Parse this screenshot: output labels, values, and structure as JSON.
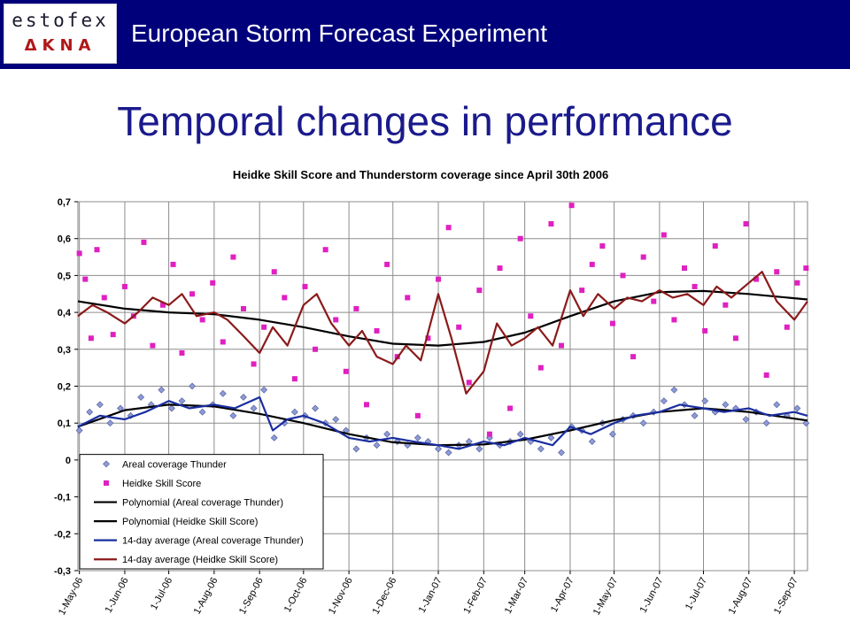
{
  "header": {
    "logo_text": "estofex",
    "logo_glyphs": "ΔΚΝΑ",
    "org_name": "European Storm Forecast Experiment"
  },
  "slide": {
    "title": "Temporal changes in performance"
  },
  "chart_data": {
    "type": "line",
    "title": "Heidke Skill Score and Thunderstorm coverage since April 30th 2006",
    "xlabel": "",
    "ylabel": "",
    "ylim": [
      -0.3,
      0.7
    ],
    "y_ticks": [
      "0,7",
      "0,6",
      "0,5",
      "0,4",
      "0,3",
      "0,2",
      "0,1",
      "0",
      "-0,1",
      "-0,2",
      "-0,3"
    ],
    "y_tick_values": [
      0.7,
      0.6,
      0.5,
      0.4,
      0.3,
      0.2,
      0.1,
      0,
      -0.1,
      -0.2,
      -0.3
    ],
    "x_start": "2006-04-30",
    "x_end": "2007-09-10",
    "x_ticks": [
      {
        "label": "1-May-06",
        "date": "2006-05-01"
      },
      {
        "label": "1-Jun-06",
        "date": "2006-06-01"
      },
      {
        "label": "1-Jul-06",
        "date": "2006-07-01"
      },
      {
        "label": "1-Aug-06",
        "date": "2006-08-01"
      },
      {
        "label": "1-Sep-06",
        "date": "2006-09-01"
      },
      {
        "label": "1-Oct-06",
        "date": "2006-10-01"
      },
      {
        "label": "1-Nov-06",
        "date": "2006-11-01"
      },
      {
        "label": "1-Dec-06",
        "date": "2006-12-01"
      },
      {
        "label": "1-Jan-07",
        "date": "2007-01-01"
      },
      {
        "label": "1-Feb-07",
        "date": "2007-02-01"
      },
      {
        "label": "1-Mar-07",
        "date": "2007-03-01"
      },
      {
        "label": "1-Apr-07",
        "date": "2007-04-01"
      },
      {
        "label": "1-May-07",
        "date": "2007-05-01"
      },
      {
        "label": "1-Jun-07",
        "date": "2007-06-01"
      },
      {
        "label": "1-Jul-07",
        "date": "2007-07-01"
      },
      {
        "label": "1-Aug-07",
        "date": "2007-08-01"
      },
      {
        "label": "1-Sep-07",
        "date": "2007-09-01"
      }
    ],
    "grid": true,
    "legend_position": "bottom-left",
    "series": [
      {
        "name": "Areal coverage Thunder",
        "kind": "scatter",
        "marker": "diamond",
        "color": "#8e9ad8",
        "x": [
          "2006-05-01",
          "2006-05-08",
          "2006-05-15",
          "2006-05-22",
          "2006-05-29",
          "2006-06-05",
          "2006-06-12",
          "2006-06-19",
          "2006-06-26",
          "2006-07-03",
          "2006-07-10",
          "2006-07-17",
          "2006-07-24",
          "2006-07-31",
          "2006-08-07",
          "2006-08-14",
          "2006-08-21",
          "2006-08-28",
          "2006-09-04",
          "2006-09-11",
          "2006-09-18",
          "2006-09-25",
          "2006-10-02",
          "2006-10-09",
          "2006-10-16",
          "2006-10-23",
          "2006-10-30",
          "2006-11-06",
          "2006-11-13",
          "2006-11-20",
          "2006-11-27",
          "2006-12-04",
          "2006-12-11",
          "2006-12-18",
          "2006-12-25",
          "2007-01-01",
          "2007-01-08",
          "2007-01-15",
          "2007-01-22",
          "2007-01-29",
          "2007-02-05",
          "2007-02-12",
          "2007-02-19",
          "2007-02-26",
          "2007-03-05",
          "2007-03-12",
          "2007-03-19",
          "2007-03-26",
          "2007-04-02",
          "2007-04-09",
          "2007-04-16",
          "2007-04-23",
          "2007-04-30",
          "2007-05-07",
          "2007-05-14",
          "2007-05-21",
          "2007-05-28",
          "2007-06-04",
          "2007-06-11",
          "2007-06-18",
          "2007-06-25",
          "2007-07-02",
          "2007-07-09",
          "2007-07-16",
          "2007-07-23",
          "2007-07-30",
          "2007-08-06",
          "2007-08-13",
          "2007-08-20",
          "2007-08-27",
          "2007-09-03",
          "2007-09-09"
        ],
        "y": [
          0.08,
          0.13,
          0.15,
          0.1,
          0.14,
          0.12,
          0.17,
          0.15,
          0.19,
          0.14,
          0.16,
          0.2,
          0.13,
          0.15,
          0.18,
          0.12,
          0.17,
          0.14,
          0.19,
          0.06,
          0.1,
          0.13,
          0.12,
          0.14,
          0.1,
          0.11,
          0.08,
          0.03,
          0.06,
          0.04,
          0.07,
          0.05,
          0.04,
          0.06,
          0.05,
          0.03,
          0.02,
          0.04,
          0.05,
          0.03,
          0.06,
          0.04,
          0.05,
          0.07,
          0.05,
          0.03,
          0.06,
          0.02,
          0.09,
          0.08,
          0.05,
          0.1,
          0.07,
          0.11,
          0.12,
          0.1,
          0.13,
          0.16,
          0.19,
          0.15,
          0.12,
          0.16,
          0.13,
          0.15,
          0.14,
          0.11,
          0.13,
          0.1,
          0.15,
          0.12,
          0.14,
          0.1
        ]
      },
      {
        "name": "Heidke Skill Score",
        "kind": "scatter",
        "marker": "square",
        "color": "#e020c0",
        "x": [
          "2006-05-01",
          "2006-05-05",
          "2006-05-09",
          "2006-05-13",
          "2006-05-18",
          "2006-05-24",
          "2006-06-01",
          "2006-06-07",
          "2006-06-14",
          "2006-06-20",
          "2006-06-27",
          "2006-07-04",
          "2006-07-10",
          "2006-07-17",
          "2006-07-24",
          "2006-07-31",
          "2006-08-07",
          "2006-08-14",
          "2006-08-21",
          "2006-08-28",
          "2006-09-04",
          "2006-09-11",
          "2006-09-18",
          "2006-09-25",
          "2006-10-02",
          "2006-10-09",
          "2006-10-16",
          "2006-10-23",
          "2006-10-30",
          "2006-11-06",
          "2006-11-13",
          "2006-11-20",
          "2006-11-27",
          "2006-12-04",
          "2006-12-11",
          "2006-12-18",
          "2006-12-25",
          "2007-01-01",
          "2007-01-08",
          "2007-01-15",
          "2007-01-22",
          "2007-01-29",
          "2007-02-05",
          "2007-02-12",
          "2007-02-19",
          "2007-02-26",
          "2007-03-05",
          "2007-03-12",
          "2007-03-19",
          "2007-03-26",
          "2007-04-02",
          "2007-04-09",
          "2007-04-16",
          "2007-04-23",
          "2007-04-30",
          "2007-05-07",
          "2007-05-14",
          "2007-05-21",
          "2007-05-28",
          "2007-06-04",
          "2007-06-11",
          "2007-06-18",
          "2007-06-25",
          "2007-07-02",
          "2007-07-09",
          "2007-07-16",
          "2007-07-23",
          "2007-07-30",
          "2007-08-06",
          "2007-08-13",
          "2007-08-20",
          "2007-08-27",
          "2007-09-03",
          "2007-09-09"
        ],
        "y": [
          0.56,
          0.49,
          0.33,
          0.57,
          0.44,
          0.34,
          0.47,
          0.39,
          0.59,
          0.31,
          0.42,
          0.53,
          0.29,
          0.45,
          0.38,
          0.48,
          0.32,
          0.55,
          0.41,
          0.26,
          0.36,
          0.51,
          0.44,
          0.22,
          0.47,
          0.3,
          0.57,
          0.38,
          0.24,
          0.41,
          0.15,
          0.35,
          0.53,
          0.28,
          0.44,
          0.12,
          0.33,
          0.49,
          0.63,
          0.36,
          0.21,
          0.46,
          0.07,
          0.52,
          0.14,
          0.6,
          0.39,
          0.25,
          0.64,
          0.31,
          0.69,
          0.46,
          0.53,
          0.58,
          0.37,
          0.5,
          0.28,
          0.55,
          0.43,
          0.61,
          0.38,
          0.52,
          0.47,
          0.35,
          0.58,
          0.42,
          0.33,
          0.64,
          0.49,
          0.23,
          0.51,
          0.36,
          0.48,
          0.52
        ]
      },
      {
        "name": "Polynomial (Areal coverage Thunder)",
        "kind": "line",
        "color": "#000000",
        "x": [
          "2006-04-30",
          "2006-06-01",
          "2006-07-01",
          "2006-08-01",
          "2006-09-01",
          "2006-10-01",
          "2006-11-01",
          "2006-12-01",
          "2007-01-01",
          "2007-02-01",
          "2007-03-01",
          "2007-04-01",
          "2007-05-01",
          "2007-06-01",
          "2007-07-01",
          "2007-08-01",
          "2007-09-10"
        ],
        "y": [
          0.09,
          0.135,
          0.15,
          0.145,
          0.125,
          0.1,
          0.07,
          0.048,
          0.04,
          0.042,
          0.055,
          0.08,
          0.108,
          0.13,
          0.14,
          0.13,
          0.107
        ]
      },
      {
        "name": "Polynomial (Heidke Skill Score)",
        "kind": "line",
        "color": "#000000",
        "x": [
          "2006-04-30",
          "2006-06-01",
          "2006-07-01",
          "2006-08-01",
          "2006-09-01",
          "2006-10-01",
          "2006-11-01",
          "2006-12-01",
          "2007-01-01",
          "2007-02-01",
          "2007-03-01",
          "2007-04-01",
          "2007-05-01",
          "2007-06-01",
          "2007-07-01",
          "2007-08-01",
          "2007-09-10"
        ],
        "y": [
          0.43,
          0.41,
          0.4,
          0.395,
          0.38,
          0.36,
          0.335,
          0.315,
          0.31,
          0.32,
          0.345,
          0.39,
          0.43,
          0.455,
          0.458,
          0.45,
          0.435
        ]
      },
      {
        "name": "14-day average (Areal coverage Thunder)",
        "kind": "line",
        "color": "#1a2ea0",
        "x": [
          "2006-04-30",
          "2006-05-15",
          "2006-06-01",
          "2006-06-15",
          "2006-07-01",
          "2006-07-15",
          "2006-08-01",
          "2006-08-15",
          "2006-09-01",
          "2006-09-10",
          "2006-09-20",
          "2006-10-01",
          "2006-10-15",
          "2006-11-01",
          "2006-11-15",
          "2006-12-01",
          "2006-12-15",
          "2007-01-01",
          "2007-01-15",
          "2007-02-01",
          "2007-02-15",
          "2007-03-01",
          "2007-03-20",
          "2007-04-01",
          "2007-04-15",
          "2007-05-01",
          "2007-05-15",
          "2007-06-01",
          "2007-06-15",
          "2007-07-01",
          "2007-07-15",
          "2007-08-01",
          "2007-08-15",
          "2007-09-01",
          "2007-09-10"
        ],
        "y": [
          0.09,
          0.12,
          0.11,
          0.13,
          0.16,
          0.14,
          0.15,
          0.14,
          0.17,
          0.08,
          0.11,
          0.12,
          0.1,
          0.06,
          0.05,
          0.06,
          0.05,
          0.04,
          0.03,
          0.05,
          0.04,
          0.06,
          0.04,
          0.09,
          0.07,
          0.1,
          0.12,
          0.13,
          0.15,
          0.14,
          0.13,
          0.14,
          0.12,
          0.13,
          0.12
        ]
      },
      {
        "name": "14-day average (Heidke Skill Score)",
        "kind": "line",
        "color": "#8b1a1a",
        "x": [
          "2006-04-30",
          "2006-05-10",
          "2006-05-20",
          "2006-06-01",
          "2006-06-10",
          "2006-06-20",
          "2006-07-01",
          "2006-07-10",
          "2006-07-20",
          "2006-08-01",
          "2006-08-10",
          "2006-08-20",
          "2006-09-01",
          "2006-09-10",
          "2006-09-20",
          "2006-10-01",
          "2006-10-10",
          "2006-10-20",
          "2006-11-01",
          "2006-11-10",
          "2006-11-20",
          "2006-12-01",
          "2006-12-10",
          "2006-12-20",
          "2007-01-01",
          "2007-01-10",
          "2007-01-20",
          "2007-02-01",
          "2007-02-10",
          "2007-02-20",
          "2007-03-01",
          "2007-03-10",
          "2007-03-20",
          "2007-04-01",
          "2007-04-10",
          "2007-04-20",
          "2007-05-01",
          "2007-05-10",
          "2007-05-20",
          "2007-06-01",
          "2007-06-10",
          "2007-06-20",
          "2007-07-01",
          "2007-07-10",
          "2007-07-20",
          "2007-08-01",
          "2007-08-10",
          "2007-08-20",
          "2007-09-01",
          "2007-09-10"
        ],
        "y": [
          0.39,
          0.42,
          0.4,
          0.37,
          0.4,
          0.44,
          0.42,
          0.45,
          0.39,
          0.4,
          0.38,
          0.34,
          0.29,
          0.36,
          0.31,
          0.42,
          0.45,
          0.37,
          0.31,
          0.35,
          0.28,
          0.26,
          0.31,
          0.27,
          0.45,
          0.33,
          0.18,
          0.24,
          0.37,
          0.31,
          0.33,
          0.36,
          0.31,
          0.46,
          0.39,
          0.45,
          0.41,
          0.44,
          0.43,
          0.46,
          0.44,
          0.45,
          0.42,
          0.47,
          0.44,
          0.48,
          0.51,
          0.43,
          0.38,
          0.43
        ]
      }
    ]
  }
}
